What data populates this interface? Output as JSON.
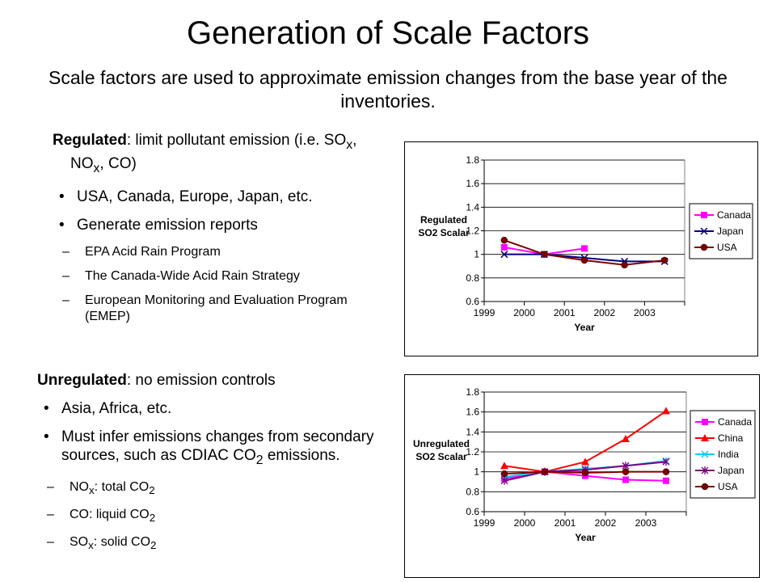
{
  "slide": {
    "title": "Generation of Scale Factors",
    "subtitle": "Scale factors are used to approximate emission changes from the base year of the inventories."
  },
  "regulated": {
    "heading_bold": "Regulated",
    "heading_rest": ": limit pollutant emission (i.e. SO",
    "heading_so_sub": "x",
    "heading_mid": ", NO",
    "heading_no_sub": "x",
    "heading_end": ", CO)",
    "bullets": [
      "USA, Canada, Europe, Japan, etc.",
      "Generate emission reports"
    ],
    "dash_mark": "–",
    "subbullets": [
      "EPA Acid Rain Program",
      "The Canada-Wide Acid Rain Strategy",
      "European Monitoring and Evaluation Program (EMEP)"
    ]
  },
  "unregulated": {
    "heading_bold": "Unregulated",
    "heading_rest": ": no emission controls",
    "bullet1": "Asia, Africa, etc.",
    "bullet2_pre": "Must infer emissions changes from secondary sources, such as CDIAC CO",
    "bullet2_sub": "2",
    "bullet2_post": " emissions.",
    "dash_mark": "–",
    "sub1_a": "NO",
    "sub1_a_sub": "x",
    "sub1_b": ": total CO",
    "sub1_b_sub": "2",
    "sub2_a": "CO: liquid CO",
    "sub2_a_sub": "2",
    "sub3_a": "SO",
    "sub3_a_sub": "x",
    "sub3_b": ": solid CO",
    "sub3_b_sub": "2"
  },
  "chart_data": [
    {
      "type": "line",
      "ylabel": "Regulated SO2 Scalar",
      "xlabel": "Year",
      "x": [
        "1999",
        "2000",
        "2001",
        "2002",
        "2003"
      ],
      "ylim": [
        0.6,
        1.8
      ],
      "yticks": [
        "0.6",
        "0.8",
        "1",
        "1.2",
        "1.4",
        "1.6",
        "1.8"
      ],
      "grid": "horizontal",
      "legend": "right",
      "series": [
        {
          "name": "Canada",
          "color": "#ff00ff",
          "marker": "square",
          "values": [
            1.06,
            1.0,
            1.05,
            null,
            null
          ]
        },
        {
          "name": "Japan",
          "color": "#000080",
          "marker": "x",
          "values": [
            1.0,
            1.0,
            0.97,
            0.94,
            0.94
          ]
        },
        {
          "name": "USA",
          "color": "#800000",
          "marker": "circle",
          "values": [
            1.12,
            1.0,
            0.95,
            0.91,
            0.95
          ]
        }
      ]
    },
    {
      "type": "line",
      "ylabel": "Unregulated SO2 Scalar",
      "xlabel": "Year",
      "x": [
        "1999",
        "2000",
        "2001",
        "2002",
        "2003"
      ],
      "ylim": [
        0.6,
        1.8
      ],
      "yticks": [
        "0.6",
        "0.8",
        "1",
        "1.2",
        "1.4",
        "1.6",
        "1.8"
      ],
      "grid": "horizontal",
      "legend": "right",
      "series": [
        {
          "name": "Canada",
          "color": "#ff00ff",
          "marker": "square",
          "values": [
            0.93,
            1.0,
            0.96,
            0.92,
            0.91
          ]
        },
        {
          "name": "China",
          "color": "#ff0000",
          "marker": "triangle",
          "values": [
            1.06,
            1.0,
            1.1,
            1.33,
            1.61
          ]
        },
        {
          "name": "India",
          "color": "#00ccff",
          "marker": "x",
          "values": [
            0.95,
            1.0,
            1.03,
            1.06,
            1.11
          ]
        },
        {
          "name": "Japan",
          "color": "#800080",
          "marker": "star",
          "values": [
            0.91,
            1.0,
            1.02,
            1.06,
            1.1
          ]
        },
        {
          "name": "USA",
          "color": "#800000",
          "marker": "circle",
          "values": [
            0.98,
            1.0,
            0.99,
            1.0,
            1.0
          ]
        }
      ]
    }
  ]
}
